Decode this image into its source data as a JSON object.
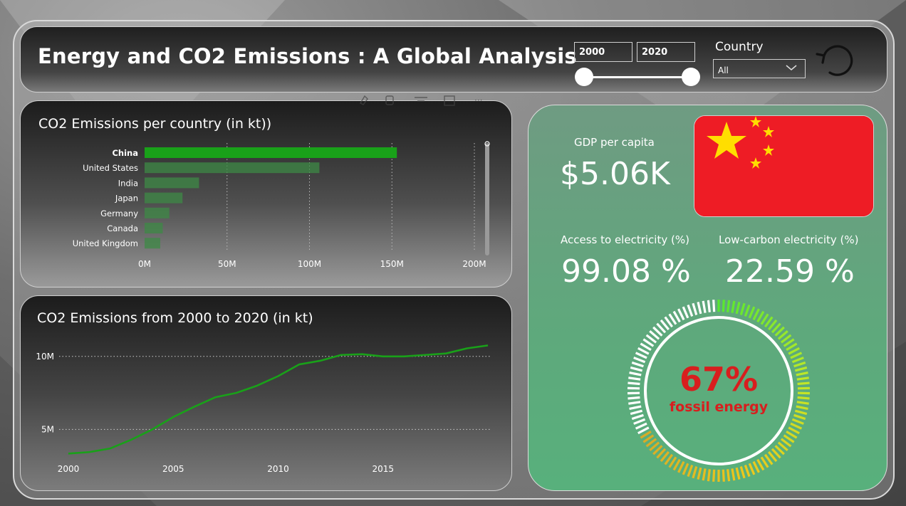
{
  "header": {
    "title": "Energy and CO2 Emissions : A Global Analysis",
    "year_start": "2000",
    "year_end": "2020",
    "country_label": "Country",
    "country_value": "All"
  },
  "bar_panel": {
    "title": "CO2 Emissions per country (in kt))"
  },
  "line_panel": {
    "title": "CO2 Emissions from 2000 to 2020 (in kt)"
  },
  "kpis": {
    "gdp_label": "GDP per capita",
    "gdp_value": "$5.06K",
    "access_label": "Access to electricity (%)",
    "access_value": "99.08 %",
    "lowcarbon_label": "Low-carbon electricity (%)",
    "lowcarbon_value": "22.59 %",
    "fossil_percent": "67%",
    "fossil_label": "fossil energy",
    "fossil_fraction": 0.67
  },
  "colors": {
    "accent_green": "#19a119",
    "bar_dim": "#3e8a46",
    "gauge_red": "#d81e1e",
    "flag_red": "#ee1c25",
    "flag_yellow": "#ffde00"
  },
  "chart_data": [
    {
      "type": "bar",
      "orientation": "horizontal",
      "categories": [
        "China",
        "United States",
        "India",
        "Japan",
        "Germany",
        "Canada",
        "United Kingdom"
      ],
      "values": [
        153000000,
        106000000,
        33000000,
        23000000,
        15000000,
        11000000,
        9500000
      ],
      "highlighted": "China",
      "xticks": [
        "0M",
        "50M",
        "100M",
        "150M",
        "200M"
      ],
      "xlim": [
        0,
        200000000
      ],
      "grid": true
    },
    {
      "type": "line",
      "x": [
        2000,
        2001,
        2002,
        2003,
        2004,
        2005,
        2006,
        2007,
        2008,
        2009,
        2010,
        2011,
        2012,
        2013,
        2014,
        2015,
        2016,
        2017,
        2018,
        2019,
        2020
      ],
      "values": [
        3350000,
        3450000,
        3700000,
        4300000,
        5000000,
        5850000,
        6550000,
        7200000,
        7500000,
        8000000,
        8650000,
        9450000,
        9700000,
        10100000,
        10150000,
        10000000,
        10000000,
        10100000,
        10200000,
        10550000,
        10750000
      ],
      "xticks": [
        "2000",
        "2005",
        "2010",
        "2015"
      ],
      "yticks": [
        "5M",
        "10M"
      ],
      "ylim": [
        2000000,
        11500000
      ],
      "grid": true
    }
  ]
}
